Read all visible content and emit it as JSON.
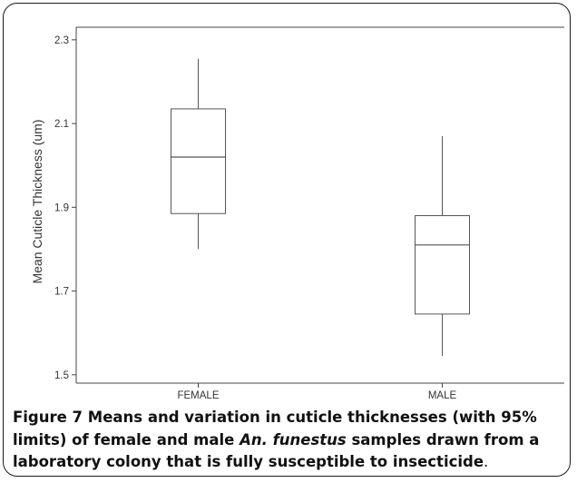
{
  "chart_data": {
    "type": "boxplot",
    "ylabel": "Mean Cuticle Thickness (um)",
    "xlabel": "",
    "ylim": [
      1.48,
      2.33
    ],
    "yticks": [
      "1.5",
      "1.7",
      "1.9",
      "2.1",
      "2.3"
    ],
    "ytick_values": [
      1.5,
      1.7,
      1.9,
      2.1,
      2.3
    ],
    "grid": false,
    "categories": [
      "FEMALE",
      "MALE"
    ],
    "boxes": [
      {
        "category": "FEMALE",
        "whisker_low": 1.8,
        "q1": 1.885,
        "median": 2.02,
        "q3": 2.135,
        "whisker_high": 2.255
      },
      {
        "category": "MALE",
        "whisker_low": 1.545,
        "q1": 1.645,
        "median": 1.81,
        "q3": 1.88,
        "whisker_high": 2.07
      }
    ],
    "colors": {
      "box_stroke": "#555555",
      "axis": "#444444",
      "text": "#333333"
    }
  },
  "caption": {
    "label": "Figure 7",
    "text_before": " Means and variation in cuticle thicknesses (with 95% limits) of female and male ",
    "species": "An. funestus",
    "text_after": " samples drawn from a laboratory colony that is fully susceptible to insecticide",
    "end": "."
  }
}
